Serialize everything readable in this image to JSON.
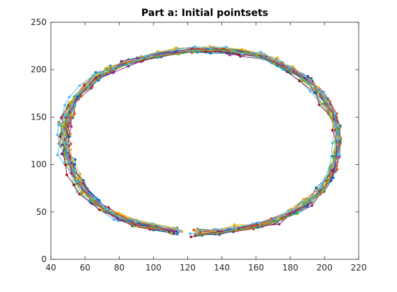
{
  "chart_data": {
    "type": "line",
    "title": "Part a: Initial pointsets",
    "xlabel": "",
    "ylabel": "",
    "xlim": [
      40,
      220
    ],
    "ylim": [
      0,
      250
    ],
    "x_ticks": [
      40,
      60,
      80,
      100,
      120,
      140,
      160,
      180,
      200,
      220
    ],
    "y_ticks": [
      0,
      50,
      100,
      150,
      200,
      250
    ],
    "grid": false,
    "legend": "none",
    "markers": "filled circles",
    "series_count": 20,
    "template_path": [
      [
        113,
        30
      ],
      [
        100,
        34
      ],
      [
        90,
        38
      ],
      [
        80,
        44
      ],
      [
        72,
        52
      ],
      [
        65,
        62
      ],
      [
        60,
        72
      ],
      [
        56,
        82
      ],
      [
        53,
        92
      ],
      [
        51,
        102
      ],
      [
        49,
        112
      ],
      [
        48,
        122
      ],
      [
        48,
        132
      ],
      [
        48,
        142
      ],
      [
        50,
        152
      ],
      [
        52,
        162
      ],
      [
        56,
        172
      ],
      [
        61,
        182
      ],
      [
        67,
        192
      ],
      [
        75,
        200
      ],
      [
        84,
        207
      ],
      [
        93,
        212
      ],
      [
        103,
        216
      ],
      [
        113,
        219
      ],
      [
        123,
        221
      ],
      [
        133,
        221
      ],
      [
        143,
        220
      ],
      [
        153,
        218
      ],
      [
        163,
        214
      ],
      [
        172,
        208
      ],
      [
        181,
        200
      ],
      [
        189,
        190
      ],
      [
        196,
        178
      ],
      [
        201,
        166
      ],
      [
        205,
        152
      ],
      [
        207,
        138
      ],
      [
        208,
        124
      ],
      [
        207,
        110
      ],
      [
        205,
        96
      ],
      [
        202,
        84
      ],
      [
        197,
        72
      ],
      [
        190,
        60
      ],
      [
        182,
        50
      ],
      [
        172,
        42
      ],
      [
        161,
        36
      ],
      [
        149,
        32
      ],
      [
        137,
        29
      ],
      [
        126,
        27
      ]
    ],
    "colors": [
      "#0072bd",
      "#d95319",
      "#edb120",
      "#7e2f8e",
      "#77ac30",
      "#4dbeee",
      "#a2142f"
    ]
  }
}
